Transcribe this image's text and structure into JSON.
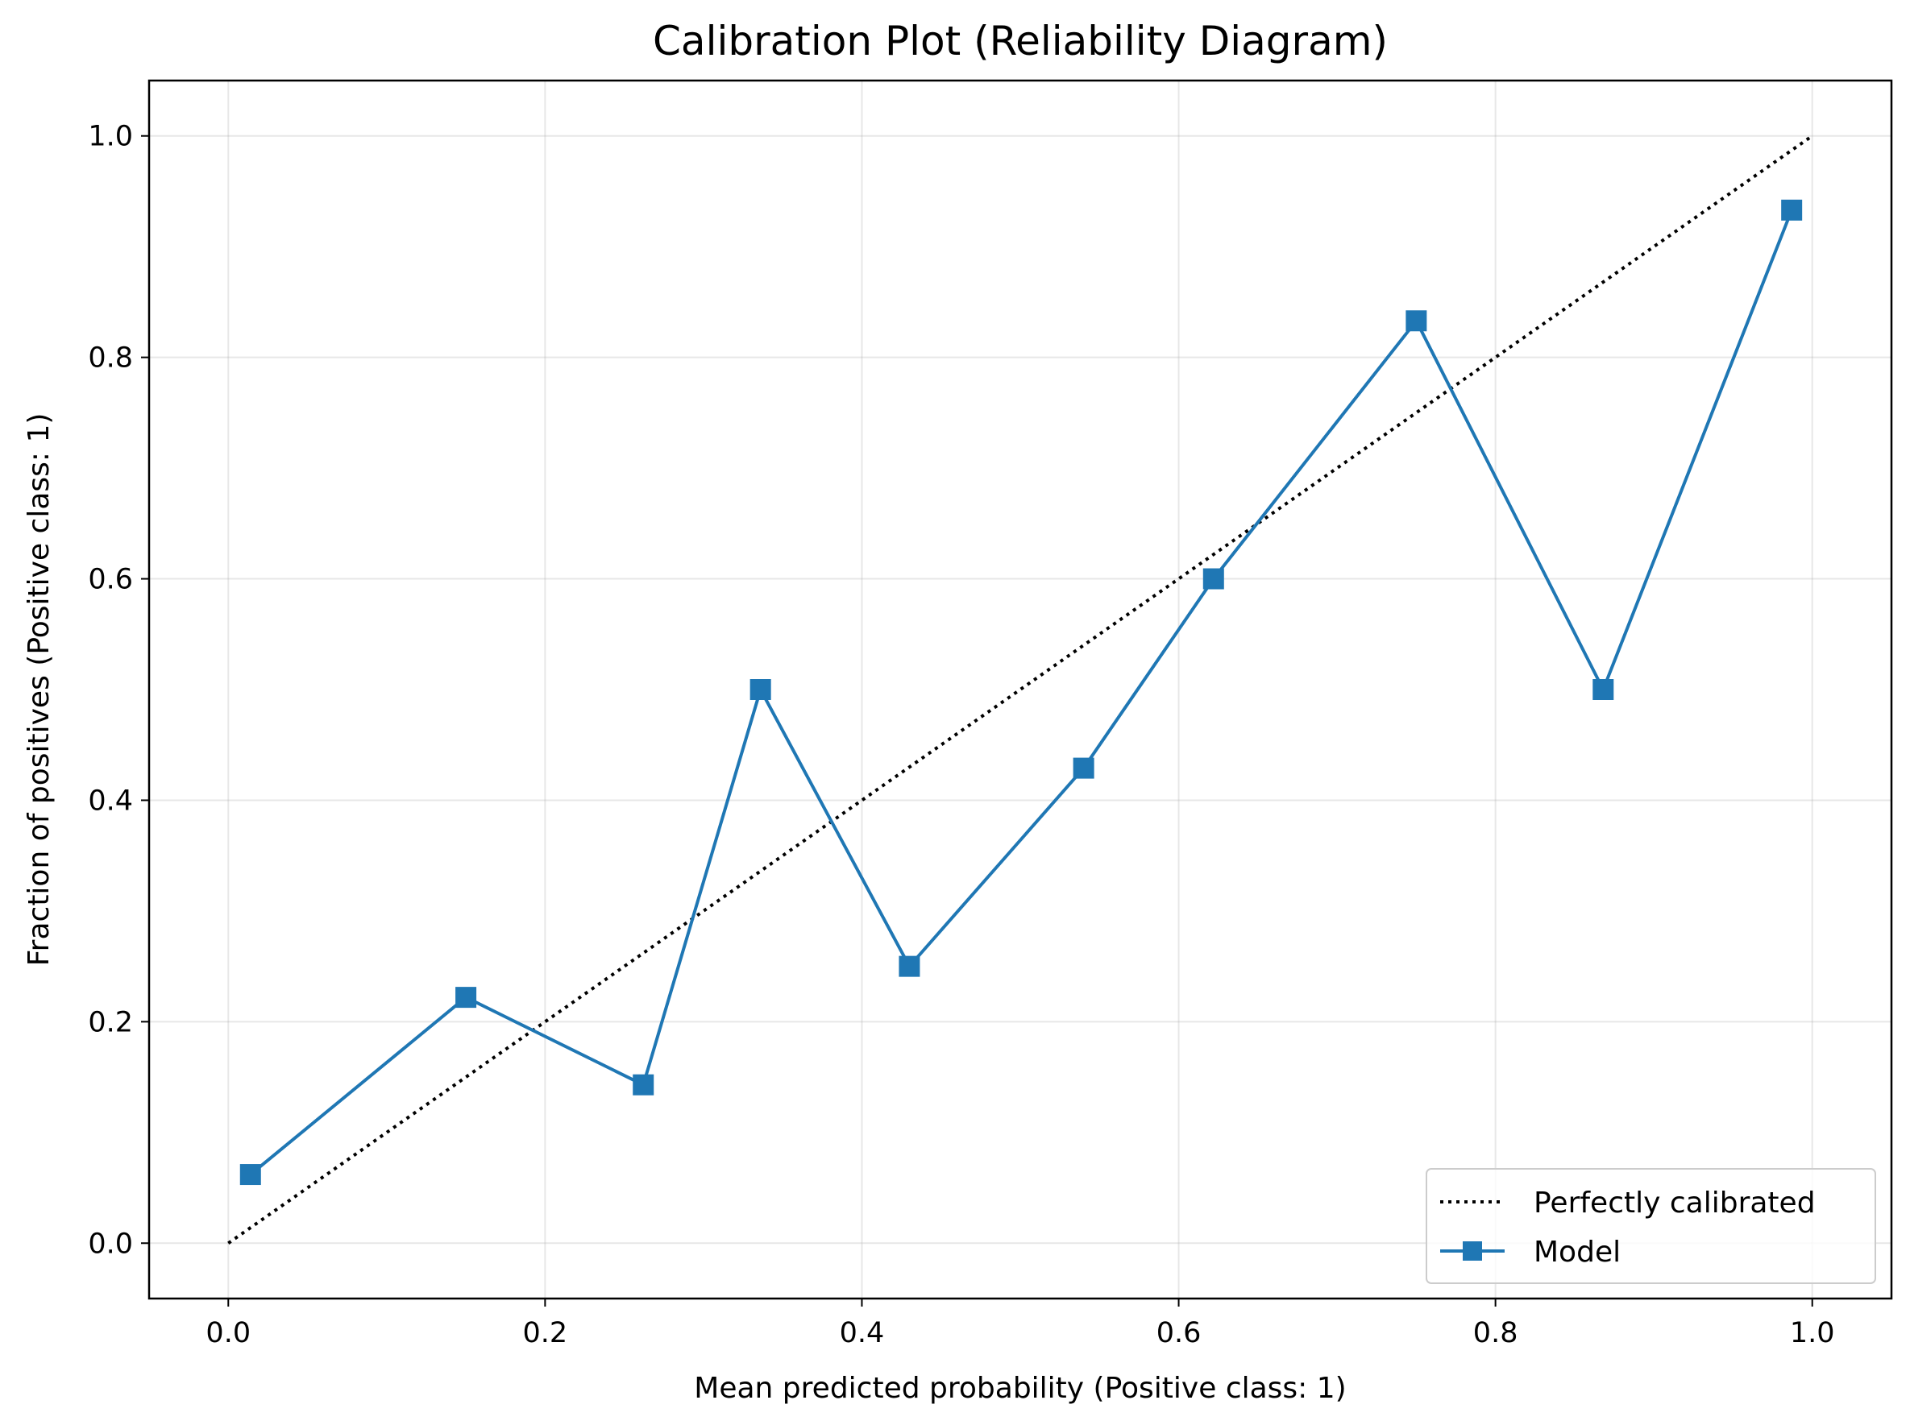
{
  "chart_data": {
    "type": "line",
    "title": "Calibration Plot (Reliability Diagram)",
    "xlabel": "Mean predicted probability (Positive class: 1)",
    "ylabel": "Fraction of positives (Positive class: 1)",
    "xlim": [
      -0.05,
      1.05
    ],
    "ylim": [
      -0.05,
      1.05
    ],
    "x_ticks": [
      "0.0",
      "0.2",
      "0.4",
      "0.6",
      "0.8",
      "1.0"
    ],
    "y_ticks": [
      "0.0",
      "0.2",
      "0.4",
      "0.6",
      "0.8",
      "1.0"
    ],
    "grid": true,
    "legend_position": "lower-right",
    "series": [
      {
        "name": "Perfectly calibrated",
        "style": "dotted",
        "color": "#000000",
        "marker": "none",
        "x": [
          0.0,
          1.0
        ],
        "y": [
          0.0,
          1.0
        ]
      },
      {
        "name": "Model",
        "style": "solid",
        "color": "#1f77b4",
        "marker": "square",
        "x": [
          0.014,
          0.15,
          0.262,
          0.336,
          0.43,
          0.54,
          0.622,
          0.75,
          0.868,
          0.987
        ],
        "y": [
          0.062,
          0.222,
          0.143,
          0.5,
          0.25,
          0.429,
          0.6,
          0.833,
          0.5,
          0.933
        ]
      }
    ]
  }
}
